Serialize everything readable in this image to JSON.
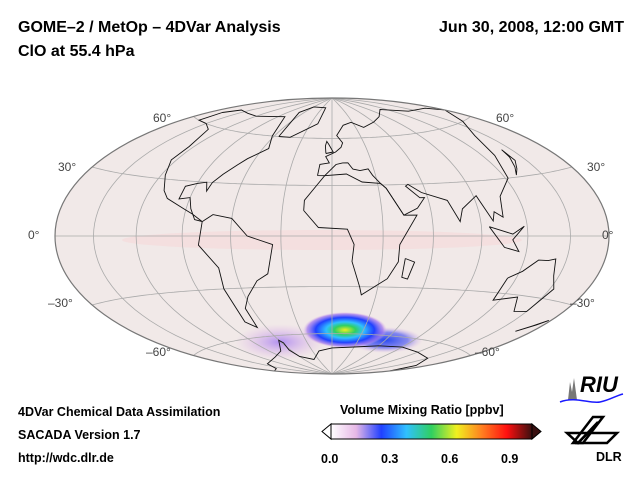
{
  "header": {
    "title_line1": "GOME–2 / MetOp – 4DVar Analysis",
    "title_line2": "ClO at 55.4 hPa",
    "datetime": "Jun 30, 2008, 12:00 GMT"
  },
  "map": {
    "projection": "Hammer",
    "central_longitude": 0,
    "graticule_step_deg": 30,
    "lat_labels": {
      "n60": "60°",
      "n30": "30°",
      "eq": "0°",
      "s30": "–30°",
      "s60": "–60°"
    }
  },
  "footer": {
    "line1": "4DVar Chemical Data Assimilation",
    "line2": "SACADA Version 1.7",
    "line3": "http://wdc.dlr.de"
  },
  "colorbar": {
    "title": "Volume Mixing Ratio [ppbv]",
    "ticks": [
      "0.0",
      "0.3",
      "0.6",
      "0.9"
    ],
    "range": [
      0.0,
      1.0
    ],
    "colors": [
      "#ffffff",
      "#e6b8e6",
      "#2040ff",
      "#30c0ff",
      "#30d060",
      "#f0f020",
      "#ff8020",
      "#ff1010",
      "#3a1010"
    ]
  },
  "logos": {
    "riu": "RIU",
    "dlr": "DLR"
  }
}
